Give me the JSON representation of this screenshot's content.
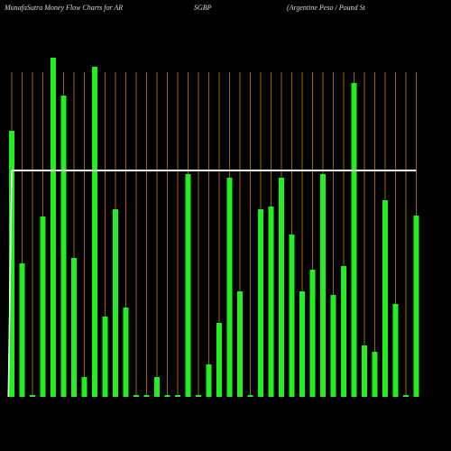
{
  "chart_data": {
    "type": "bar",
    "title_parts": [
      "MunafaSutra  Money Flow  Charts for AR",
      "SGBP",
      "(Argentine   Peso   / Pound St"
    ],
    "categories": [
      null,
      null,
      null,
      null,
      null,
      null,
      null,
      null,
      null,
      null,
      null,
      null,
      null,
      null,
      null,
      null,
      null,
      null,
      null,
      null,
      null,
      null,
      null,
      null,
      null,
      null,
      null,
      null,
      null,
      null,
      null,
      null,
      null,
      null,
      null,
      null,
      null,
      null,
      null,
      null
    ],
    "values": [
      295,
      148,
      2,
      200,
      376,
      334,
      154,
      22,
      366,
      89,
      208,
      99,
      2,
      2,
      22,
      2,
      2,
      247,
      2,
      36,
      82,
      243,
      117,
      2,
      208,
      211,
      243,
      180,
      117,
      141,
      247,
      113,
      145,
      348,
      57,
      50,
      218,
      103,
      2,
      201
    ],
    "average": 251,
    "color": "#22ee22",
    "grid_color": "#a0620f",
    "line_color": "#ffffff",
    "ylim": [
      0,
      380
    ],
    "grid": true
  }
}
